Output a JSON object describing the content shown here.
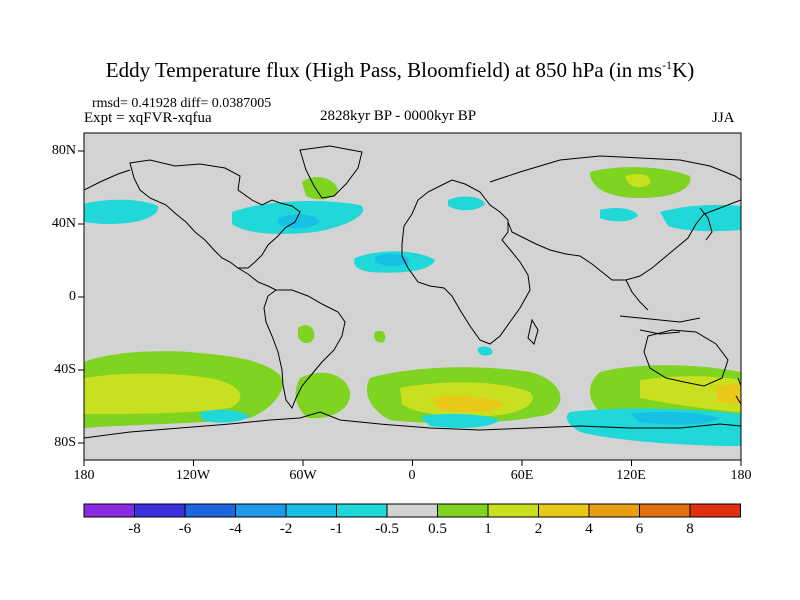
{
  "title": {
    "main": "Eddy Temperature flux (High Pass, Bloomfield) at 850 hPa (in ms",
    "sup": "-1",
    "end": "K)"
  },
  "stats": "rmsd= 0.41928 diff= 0.0387005",
  "experiment": "Expt = xqFVR-xqfua",
  "period": "2828kyr BP - 0000kyr BP",
  "season": "JJA",
  "lat_labels": [
    "80N",
    "40N",
    "0",
    "40S",
    "80S"
  ],
  "lon_labels": [
    "180",
    "120W",
    "60W",
    "0",
    "60E",
    "120E",
    "180"
  ],
  "colorbar": {
    "levels": [
      "-8",
      "-6",
      "-4",
      "-2",
      "-1",
      "-0.5",
      "0.5",
      "1",
      "2",
      "4",
      "6",
      "8"
    ],
    "colors": [
      "#8a2be2",
      "#3a2fdc",
      "#1e66e0",
      "#1e9be6",
      "#17c0e4",
      "#20d8d8",
      "#d3d3d3",
      "#7fd321",
      "#c8e020",
      "#e8c818",
      "#e8a010",
      "#e07010",
      "#e03010"
    ]
  },
  "colors": {
    "land_fill": "#d3d3d3",
    "coast": "#000000"
  }
}
